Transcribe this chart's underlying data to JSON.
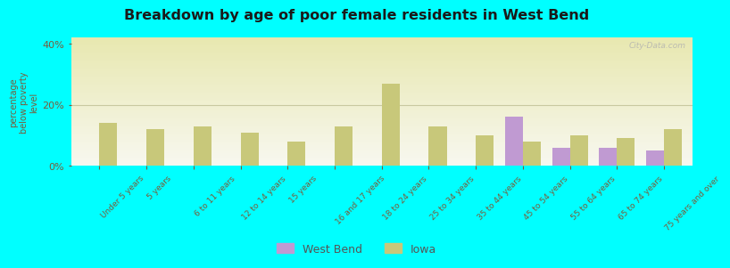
{
  "title": "Breakdown by age of poor female residents in West Bend",
  "ylabel": "percentage\nbelow poverty\nlevel",
  "background_color": "#00FFFF",
  "categories": [
    "Under 5 years",
    "5 years",
    "6 to 11 years",
    "12 to 14 years",
    "15 years",
    "16 and 17 years",
    "18 to 24 years",
    "25 to 34 years",
    "35 to 44 years",
    "45 to 54 years",
    "55 to 64 years",
    "65 to 74 years",
    "75 years and over"
  ],
  "iowa_values": [
    14.0,
    12.0,
    13.0,
    11.0,
    8.0,
    13.0,
    27.0,
    13.0,
    10.0,
    8.0,
    10.0,
    9.0,
    12.0
  ],
  "westbend_values": [
    0,
    0,
    0,
    0,
    0,
    0,
    0,
    0,
    0,
    16.0,
    6.0,
    6.0,
    5.0
  ],
  "iowa_color": "#c8c87a",
  "westbend_color": "#c09ad2",
  "ylim": [
    0,
    42
  ],
  "yticks": [
    0,
    20,
    40
  ],
  "ytick_labels": [
    "0%",
    "20%",
    "40%"
  ],
  "watermark": "City-Data.com",
  "legend_labels": [
    "West Bend",
    "Iowa"
  ],
  "bar_width": 0.38,
  "gradient_top": "#e8e8b0",
  "gradient_bottom": "#f8f8f0"
}
